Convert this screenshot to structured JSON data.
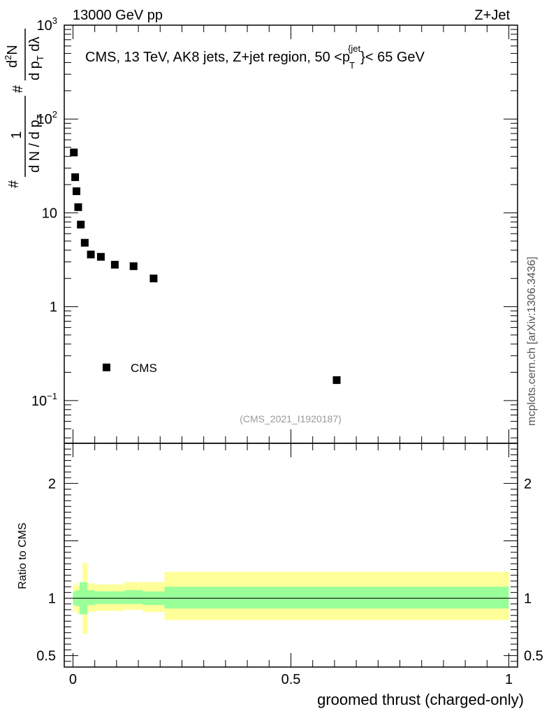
{
  "header": {
    "left": "13000 GeV pp",
    "right": "Z+Jet",
    "side_label": "mcplots.cern.ch [arXiv:1306.3436]",
    "analysis_id": "(CMS_2021_I1920187)"
  },
  "chart_data": [
    {
      "type": "scatter",
      "title": "CMS, 13 TeV, AK8 jets, Z+jet region, 50 <p_T^{jet}< 65 GeV",
      "title_parts": {
        "main": "CMS, 13 TeV, AK8 jets, Z+jet region, 50 <p",
        "sub": "T",
        "sup": "{jet",
        "close": "}< 65 GeV"
      },
      "ylabel": "# 1/(dN / d p_T #) d²N/(d p_T dλ)",
      "ylabel_parts": {
        "hash": "#",
        "one": "1",
        "den": "d N / d p",
        "sub": "T",
        "num": "d",
        "num_sup": "2",
        "num_n": "N",
        "den2": "d p",
        "den2_tail": " dλ"
      },
      "yscale": "log",
      "ylim": [
        0.035,
        1000
      ],
      "xlim": [
        -0.02,
        1.02
      ],
      "ytick_labels": [
        {
          "value": 1000,
          "base": "10",
          "exp": "3"
        },
        {
          "value": 100,
          "base": "10",
          "exp": "2"
        },
        {
          "value": 10,
          "base": "10",
          "exp": ""
        },
        {
          "value": 1,
          "base": "1",
          "exp": ""
        },
        {
          "value": 0.1,
          "base": "10",
          "exp": "−1"
        }
      ],
      "legend": {
        "entry": "CMS",
        "placement": "middle-left"
      },
      "series": [
        {
          "name": "CMS",
          "x": [
            0.002,
            0.005,
            0.008,
            0.012,
            0.018,
            0.027,
            0.041,
            0.064,
            0.096,
            0.139,
            0.185,
            0.605
          ],
          "y": [
            44,
            24,
            17,
            11.5,
            7.5,
            4.8,
            3.6,
            3.4,
            2.8,
            2.7,
            2.0,
            0.165
          ]
        }
      ]
    },
    {
      "type": "area",
      "ylabel": "Ratio to CMS",
      "xlabel": "groomed thrust (charged-only)",
      "xlim": [
        -0.02,
        1.02
      ],
      "ylim": [
        0.4,
        2.35
      ],
      "xtick_labels": [
        {
          "value": 0,
          "label": "0"
        },
        {
          "value": 0.5,
          "label": "0.5"
        },
        {
          "value": 1,
          "label": "1"
        }
      ],
      "ytick_labels": [
        {
          "value": 0.5,
          "label": "0.5"
        },
        {
          "value": 1,
          "label": "1"
        },
        {
          "value": 2,
          "label": "2"
        }
      ],
      "bins": [
        0,
        0.004,
        0.007,
        0.01,
        0.015,
        0.022,
        0.033,
        0.05,
        0.075,
        0.118,
        0.16,
        0.21,
        1.0
      ],
      "inner_band": {
        "name": "stat",
        "color": "#99ff99",
        "lo": [
          0.94,
          0.94,
          0.93,
          0.93,
          0.86,
          0.86,
          0.94,
          0.95,
          0.95,
          0.95,
          0.94,
          0.91
        ],
        "hi": [
          1.06,
          1.06,
          1.07,
          1.07,
          1.14,
          1.14,
          1.07,
          1.06,
          1.06,
          1.07,
          1.06,
          1.1
        ]
      },
      "outer_band": {
        "name": "total",
        "color": "#ffff99",
        "lo": [
          0.88,
          0.9,
          0.88,
          0.86,
          0.86,
          0.69,
          0.88,
          0.89,
          0.89,
          0.9,
          0.88,
          0.81
        ],
        "hi": [
          1.12,
          1.1,
          1.14,
          1.11,
          1.14,
          1.31,
          1.13,
          1.12,
          1.12,
          1.14,
          1.14,
          1.23
        ]
      },
      "reference_line": 1
    }
  ]
}
